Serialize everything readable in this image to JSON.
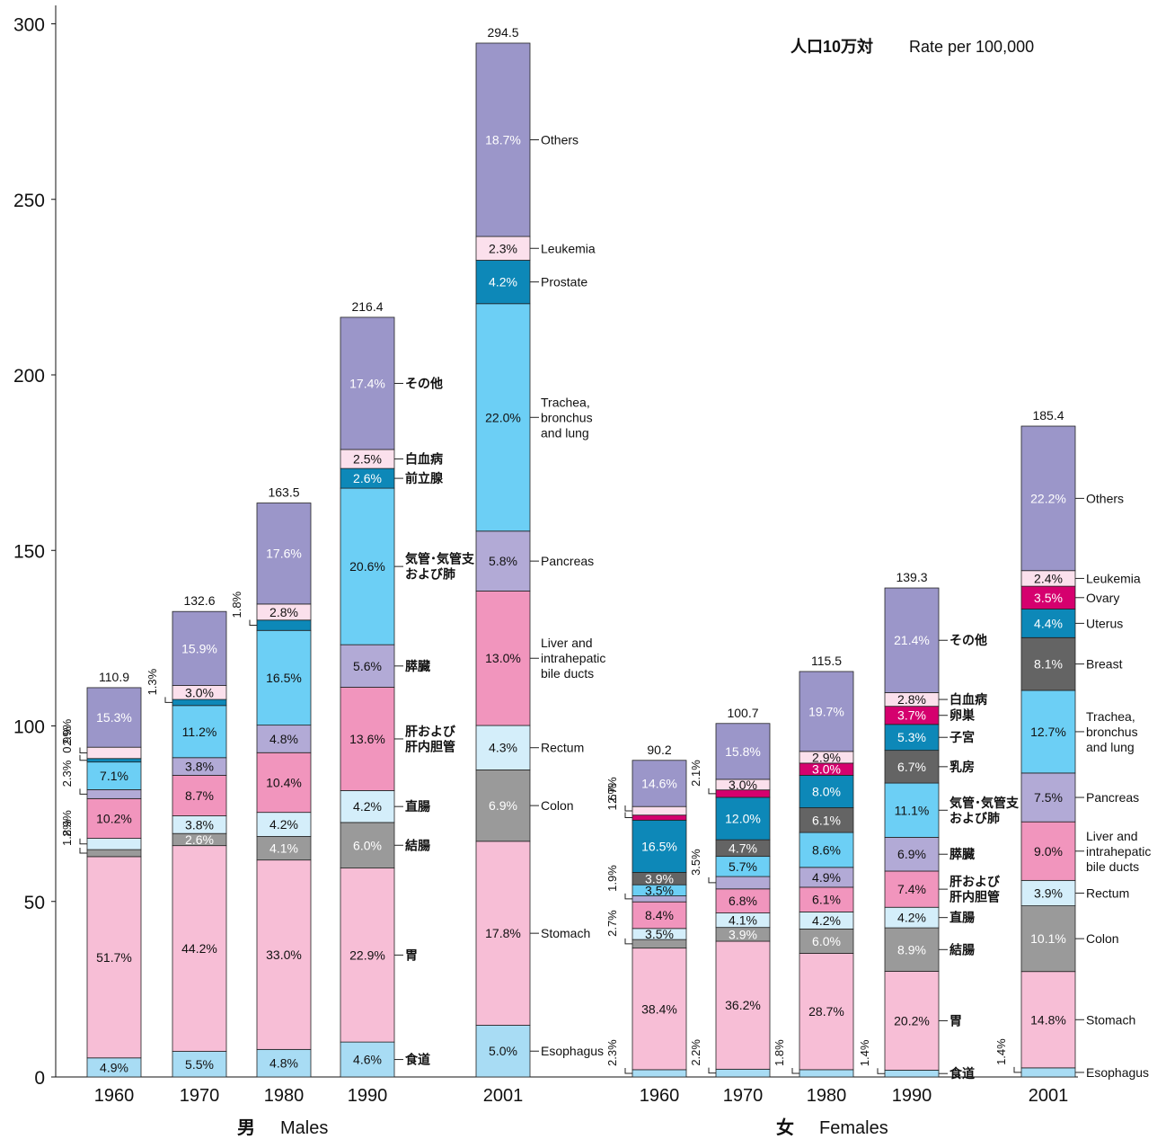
{
  "chart_data": {
    "type": "bar",
    "stacked": true,
    "ylim": [
      0,
      300
    ],
    "y_ticks": [
      0,
      50,
      100,
      150,
      200,
      250,
      300
    ],
    "rate_label_ja": "人口10万対",
    "rate_label_en": "Rate per 100,000",
    "groups": [
      {
        "label_ja": "男",
        "label_en": "Males"
      },
      {
        "label_ja": "女",
        "label_en": "Females"
      }
    ],
    "colors": {
      "esophagus": "#a8dcf4",
      "stomach": "#f7bed6",
      "colon": "#9a9a9a",
      "rectum": "#d4eefa",
      "liver": "#f195bd",
      "pancreas": "#b2aad6",
      "lung": "#6ccff5",
      "prostate": "#0d88b8",
      "uterus": "#0d88b8",
      "breast": "#646464",
      "ovary": "#d5006e",
      "leukemia": "#fbe0ec",
      "others": "#9b96c9"
    },
    "bars": [
      {
        "year": "1960",
        "group": 0,
        "total": "110.9",
        "segments": [
          {
            "cat": "esophagus",
            "label": "4.9%"
          },
          {
            "cat": "stomach",
            "label": "51.7%"
          },
          {
            "cat": "colon",
            "label": ""
          },
          {
            "cat": "rectum",
            "label": ""
          },
          {
            "cat": "liver",
            "label": "10.2%"
          },
          {
            "cat": "pancreas",
            "label": ""
          },
          {
            "cat": "lung",
            "label": "7.1%"
          },
          {
            "cat": "prostate",
            "label": ""
          },
          {
            "cat": "leukemia",
            "label": ""
          },
          {
            "cat": "others",
            "label": "15.3%"
          }
        ]
      },
      {
        "year": "1970",
        "group": 0,
        "total": "132.6",
        "segments": [
          {
            "cat": "esophagus",
            "label": "5.5%"
          },
          {
            "cat": "stomach",
            "label": "44.2%"
          },
          {
            "cat": "colon",
            "label": "2.6%"
          },
          {
            "cat": "rectum",
            "label": "3.8%"
          },
          {
            "cat": "liver",
            "label": "8.7%"
          },
          {
            "cat": "pancreas",
            "label": "3.8%"
          },
          {
            "cat": "lung",
            "label": "11.2%"
          },
          {
            "cat": "prostate",
            "label": ""
          },
          {
            "cat": "leukemia",
            "label": "3.0%"
          },
          {
            "cat": "others",
            "label": "15.9%"
          }
        ]
      },
      {
        "year": "1980",
        "group": 0,
        "total": "163.5",
        "segments": [
          {
            "cat": "esophagus",
            "label": "4.8%"
          },
          {
            "cat": "stomach",
            "label": "33.0%"
          },
          {
            "cat": "colon",
            "label": "4.1%"
          },
          {
            "cat": "rectum",
            "label": "4.2%"
          },
          {
            "cat": "liver",
            "label": "10.4%"
          },
          {
            "cat": "pancreas",
            "label": "4.8%"
          },
          {
            "cat": "lung",
            "label": "16.5%"
          },
          {
            "cat": "prostate",
            "label": ""
          },
          {
            "cat": "leukemia",
            "label": "2.8%"
          },
          {
            "cat": "others",
            "label": "17.6%"
          }
        ]
      },
      {
        "year": "1990",
        "group": 0,
        "total": "216.4",
        "segments": [
          {
            "cat": "esophagus",
            "label": "4.6%"
          },
          {
            "cat": "stomach",
            "label": "22.9%"
          },
          {
            "cat": "colon",
            "label": "6.0%"
          },
          {
            "cat": "rectum",
            "label": "4.2%"
          },
          {
            "cat": "liver",
            "label": "13.6%"
          },
          {
            "cat": "pancreas",
            "label": "5.6%"
          },
          {
            "cat": "lung",
            "label": "20.6%"
          },
          {
            "cat": "prostate",
            "label": "2.6%"
          },
          {
            "cat": "leukemia",
            "label": "2.5%"
          },
          {
            "cat": "others",
            "label": "17.4%"
          }
        ]
      },
      {
        "year": "2001",
        "group": 0,
        "total": "294.5",
        "segments": [
          {
            "cat": "esophagus",
            "label": "5.0%"
          },
          {
            "cat": "stomach",
            "label": "17.8%"
          },
          {
            "cat": "colon",
            "label": "6.9%"
          },
          {
            "cat": "rectum",
            "label": "4.3%"
          },
          {
            "cat": "liver",
            "label": "13.0%"
          },
          {
            "cat": "pancreas",
            "label": "5.8%"
          },
          {
            "cat": "lung",
            "label": "22.0%"
          },
          {
            "cat": "prostate",
            "label": "4.2%"
          },
          {
            "cat": "leukemia",
            "label": "2.3%"
          },
          {
            "cat": "others",
            "label": "18.7%"
          }
        ]
      },
      {
        "year": "1960",
        "group": 1,
        "total": "90.2",
        "segments": [
          {
            "cat": "esophagus",
            "label": ""
          },
          {
            "cat": "stomach",
            "label": "38.4%"
          },
          {
            "cat": "colon",
            "label": ""
          },
          {
            "cat": "rectum",
            "label": "3.5%"
          },
          {
            "cat": "liver",
            "label": "8.4%"
          },
          {
            "cat": "pancreas",
            "label": ""
          },
          {
            "cat": "lung",
            "label": "3.5%"
          },
          {
            "cat": "breast",
            "label": "3.9%"
          },
          {
            "cat": "uterus",
            "label": "16.5%"
          },
          {
            "cat": "ovary",
            "label": ""
          },
          {
            "cat": "leukemia",
            "label": ""
          },
          {
            "cat": "others",
            "label": "14.6%"
          }
        ]
      },
      {
        "year": "1970",
        "group": 1,
        "total": "100.7",
        "segments": [
          {
            "cat": "esophagus",
            "label": ""
          },
          {
            "cat": "stomach",
            "label": "36.2%"
          },
          {
            "cat": "colon",
            "label": "3.9%"
          },
          {
            "cat": "rectum",
            "label": "4.1%"
          },
          {
            "cat": "liver",
            "label": "6.8%"
          },
          {
            "cat": "pancreas",
            "label": ""
          },
          {
            "cat": "lung",
            "label": "5.7%"
          },
          {
            "cat": "breast",
            "label": "4.7%"
          },
          {
            "cat": "uterus",
            "label": "12.0%"
          },
          {
            "cat": "ovary",
            "label": ""
          },
          {
            "cat": "leukemia",
            "label": "3.0%"
          },
          {
            "cat": "others",
            "label": "15.8%"
          }
        ]
      },
      {
        "year": "1980",
        "group": 1,
        "total": "115.5",
        "segments": [
          {
            "cat": "esophagus",
            "label": ""
          },
          {
            "cat": "stomach",
            "label": "28.7%"
          },
          {
            "cat": "colon",
            "label": "6.0%"
          },
          {
            "cat": "rectum",
            "label": "4.2%"
          },
          {
            "cat": "liver",
            "label": "6.1%"
          },
          {
            "cat": "pancreas",
            "label": "4.9%"
          },
          {
            "cat": "lung",
            "label": "8.6%"
          },
          {
            "cat": "breast",
            "label": "6.1%"
          },
          {
            "cat": "uterus",
            "label": "8.0%"
          },
          {
            "cat": "ovary",
            "label": "3.0%"
          },
          {
            "cat": "leukemia",
            "label": "2.9%"
          },
          {
            "cat": "others",
            "label": "19.7%"
          }
        ]
      },
      {
        "year": "1990",
        "group": 1,
        "total": "139.3",
        "segments": [
          {
            "cat": "esophagus",
            "label": ""
          },
          {
            "cat": "stomach",
            "label": "20.2%"
          },
          {
            "cat": "colon",
            "label": "8.9%"
          },
          {
            "cat": "rectum",
            "label": "4.2%"
          },
          {
            "cat": "liver",
            "label": "7.4%"
          },
          {
            "cat": "pancreas",
            "label": "6.9%"
          },
          {
            "cat": "lung",
            "label": "11.1%"
          },
          {
            "cat": "breast",
            "label": "6.7%"
          },
          {
            "cat": "uterus",
            "label": "5.3%"
          },
          {
            "cat": "ovary",
            "label": "3.7%"
          },
          {
            "cat": "leukemia",
            "label": "2.8%"
          },
          {
            "cat": "others",
            "label": "21.4%"
          }
        ]
      },
      {
        "year": "2001",
        "group": 1,
        "total": "185.4",
        "segments": [
          {
            "cat": "esophagus",
            "label": ""
          },
          {
            "cat": "stomach",
            "label": "14.8%"
          },
          {
            "cat": "colon",
            "label": "10.1%"
          },
          {
            "cat": "rectum",
            "label": "3.9%"
          },
          {
            "cat": "liver",
            "label": "9.0%"
          },
          {
            "cat": "pancreas",
            "label": "7.5%"
          },
          {
            "cat": "lung",
            "label": "12.7%"
          },
          {
            "cat": "breast",
            "label": "8.1%"
          },
          {
            "cat": "uterus",
            "label": "4.4%"
          },
          {
            "cat": "ovary",
            "label": "3.5%"
          },
          {
            "cat": "leukemia",
            "label": "2.4%"
          },
          {
            "cat": "others",
            "label": "22.2%"
          }
        ]
      }
    ],
    "small_annotations": [
      {
        "bar": 0,
        "cat": "leukemia",
        "text": "2.9%"
      },
      {
        "bar": 0,
        "cat": "prostate",
        "text": "0.9%"
      },
      {
        "bar": 0,
        "cat": "pancreas",
        "text": "2.3%"
      },
      {
        "bar": 0,
        "cat": "rectum",
        "text": "2.9%"
      },
      {
        "bar": 0,
        "cat": "colon",
        "text": "1.8%"
      },
      {
        "bar": 1,
        "cat": "prostate",
        "text": "1.3%"
      },
      {
        "bar": 2,
        "cat": "prostate",
        "text": "1.8%"
      },
      {
        "bar": 5,
        "cat": "esophagus",
        "text": "2.3%"
      },
      {
        "bar": 5,
        "cat": "colon",
        "text": "2.7%"
      },
      {
        "bar": 5,
        "cat": "pancreas",
        "text": "1.9%"
      },
      {
        "bar": 5,
        "cat": "ovary",
        "text": "1.6%"
      },
      {
        "bar": 5,
        "cat": "leukemia",
        "text": "2.7%"
      },
      {
        "bar": 6,
        "cat": "esophagus",
        "text": "2.2%"
      },
      {
        "bar": 6,
        "cat": "pancreas",
        "text": "3.5%"
      },
      {
        "bar": 6,
        "cat": "ovary",
        "text": "2.1%"
      },
      {
        "bar": 7,
        "cat": "esophagus",
        "text": "1.8%"
      },
      {
        "bar": 8,
        "cat": "esophagus",
        "text": "1.4%"
      },
      {
        "bar": 9,
        "cat": "esophagus",
        "text": "1.4%"
      }
    ],
    "category_labels": [
      {
        "bar": 3,
        "cat": "others",
        "text": "その他",
        "lang": "ja"
      },
      {
        "bar": 3,
        "cat": "leukemia",
        "text": "白血病",
        "lang": "ja"
      },
      {
        "bar": 3,
        "cat": "prostate",
        "text": "前立腺",
        "lang": "ja"
      },
      {
        "bar": 3,
        "cat": "lung",
        "text": "気管･気管支\nおよび肺",
        "lang": "ja"
      },
      {
        "bar": 3,
        "cat": "pancreas",
        "text": "膵臓",
        "lang": "ja"
      },
      {
        "bar": 3,
        "cat": "liver",
        "text": "肝および\n肝内胆管",
        "lang": "ja"
      },
      {
        "bar": 3,
        "cat": "rectum",
        "text": "直腸",
        "lang": "ja"
      },
      {
        "bar": 3,
        "cat": "colon",
        "text": "結腸",
        "lang": "ja"
      },
      {
        "bar": 3,
        "cat": "stomach",
        "text": "胃",
        "lang": "ja"
      },
      {
        "bar": 3,
        "cat": "esophagus",
        "text": "食道",
        "lang": "ja"
      },
      {
        "bar": 4,
        "cat": "others",
        "text": "Others",
        "lang": "en"
      },
      {
        "bar": 4,
        "cat": "leukemia",
        "text": "Leukemia",
        "lang": "en"
      },
      {
        "bar": 4,
        "cat": "prostate",
        "text": "Prostate",
        "lang": "en"
      },
      {
        "bar": 4,
        "cat": "lung",
        "text": "Trachea,\nbronchus\nand lung",
        "lang": "en"
      },
      {
        "bar": 4,
        "cat": "pancreas",
        "text": "Pancreas",
        "lang": "en"
      },
      {
        "bar": 4,
        "cat": "liver",
        "text": "Liver and\nintrahepatic\nbile ducts",
        "lang": "en"
      },
      {
        "bar": 4,
        "cat": "rectum",
        "text": "Rectum",
        "lang": "en"
      },
      {
        "bar": 4,
        "cat": "colon",
        "text": "Colon",
        "lang": "en"
      },
      {
        "bar": 4,
        "cat": "stomach",
        "text": "Stomach",
        "lang": "en"
      },
      {
        "bar": 4,
        "cat": "esophagus",
        "text": "Esophagus",
        "lang": "en"
      },
      {
        "bar": 8,
        "cat": "others",
        "text": "その他",
        "lang": "ja"
      },
      {
        "bar": 8,
        "cat": "leukemia",
        "text": "白血病",
        "lang": "ja"
      },
      {
        "bar": 8,
        "cat": "ovary",
        "text": "卵巣",
        "lang": "ja"
      },
      {
        "bar": 8,
        "cat": "uterus",
        "text": "子宮",
        "lang": "ja"
      },
      {
        "bar": 8,
        "cat": "breast",
        "text": "乳房",
        "lang": "ja"
      },
      {
        "bar": 8,
        "cat": "lung",
        "text": "気管･気管支\nおよび肺",
        "lang": "ja"
      },
      {
        "bar": 8,
        "cat": "pancreas",
        "text": "膵臓",
        "lang": "ja"
      },
      {
        "bar": 8,
        "cat": "liver",
        "text": "肝および\n肝内胆管",
        "lang": "ja"
      },
      {
        "bar": 8,
        "cat": "rectum",
        "text": "直腸",
        "lang": "ja"
      },
      {
        "bar": 8,
        "cat": "colon",
        "text": "結腸",
        "lang": "ja"
      },
      {
        "bar": 8,
        "cat": "stomach",
        "text": "胃",
        "lang": "ja"
      },
      {
        "bar": 8,
        "cat": "esophagus",
        "text": "食道",
        "lang": "ja"
      },
      {
        "bar": 9,
        "cat": "others",
        "text": "Others",
        "lang": "en"
      },
      {
        "bar": 9,
        "cat": "leukemia",
        "text": "Leukemia",
        "lang": "en"
      },
      {
        "bar": 9,
        "cat": "ovary",
        "text": "Ovary",
        "lang": "en"
      },
      {
        "bar": 9,
        "cat": "uterus",
        "text": "Uterus",
        "lang": "en"
      },
      {
        "bar": 9,
        "cat": "breast",
        "text": "Breast",
        "lang": "en"
      },
      {
        "bar": 9,
        "cat": "lung",
        "text": "Trachea,\nbronchus\nand lung",
        "lang": "en"
      },
      {
        "bar": 9,
        "cat": "pancreas",
        "text": "Pancreas",
        "lang": "en"
      },
      {
        "bar": 9,
        "cat": "liver",
        "text": "Liver and\nintrahepatic\nbile ducts",
        "lang": "en"
      },
      {
        "bar": 9,
        "cat": "rectum",
        "text": "Rectum",
        "lang": "en"
      },
      {
        "bar": 9,
        "cat": "colon",
        "text": "Colon",
        "lang": "en"
      },
      {
        "bar": 9,
        "cat": "stomach",
        "text": "Stomach",
        "lang": "en"
      },
      {
        "bar": 9,
        "cat": "esophagus",
        "text": "Esophagus",
        "lang": "en"
      }
    ]
  }
}
